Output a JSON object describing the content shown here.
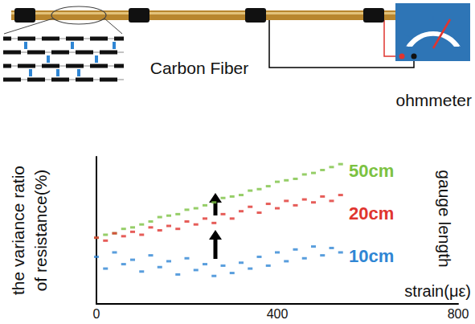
{
  "diagram": {
    "material_label": "Carbon Fiber",
    "instrument_label": "ohmmeter"
  },
  "chart_data": {
    "type": "scatter",
    "x_label": "strain(με)",
    "y_label": "the variance ratio of resistance(%)",
    "legend_title": "gauge length",
    "legend": "right",
    "marker": "rect",
    "grid": false,
    "tick_labels": "x",
    "xlim": [
      0,
      800
    ],
    "xticks": [
      0,
      400,
      800
    ],
    "ylim": [
      0,
      10
    ],
    "x": [
      0,
      20,
      40,
      60,
      80,
      100,
      120,
      140,
      160,
      180,
      200,
      220,
      240,
      260,
      280,
      300,
      320,
      340,
      360,
      380,
      400,
      420,
      440,
      460,
      480,
      500,
      520,
      540
    ],
    "series": [
      {
        "name": "50cm",
        "color": "#7cc242",
        "values": [
          4.5,
          4.7,
          4.8,
          5.1,
          5.2,
          5.4,
          5.6,
          5.9,
          6.0,
          6.1,
          6.4,
          6.5,
          6.7,
          6.9,
          7.2,
          7.3,
          7.4,
          7.7,
          7.8,
          8.0,
          8.3,
          8.4,
          8.5,
          8.8,
          8.9,
          9.1,
          9.3,
          9.5
        ]
      },
      {
        "name": "20cm",
        "color": "#e0352f",
        "values": [
          4.5,
          4.3,
          4.8,
          4.6,
          4.9,
          4.7,
          5.2,
          5.0,
          5.3,
          5.1,
          5.6,
          5.4,
          5.8,
          5.5,
          6.1,
          5.8,
          6.3,
          6.6,
          6.2,
          6.8,
          6.5,
          7.0,
          6.7,
          7.1,
          6.9,
          7.3,
          7.0,
          7.4
        ]
      },
      {
        "name": "10cm",
        "color": "#2f86d4",
        "values": [
          3.2,
          2.4,
          3.5,
          2.7,
          3.0,
          2.2,
          3.3,
          2.5,
          2.9,
          2.0,
          3.1,
          2.3,
          2.7,
          1.9,
          2.6,
          2.1,
          2.8,
          2.4,
          3.2,
          2.6,
          3.5,
          2.9,
          3.7,
          3.1,
          3.9,
          3.3,
          3.8,
          3.5
        ]
      }
    ]
  }
}
